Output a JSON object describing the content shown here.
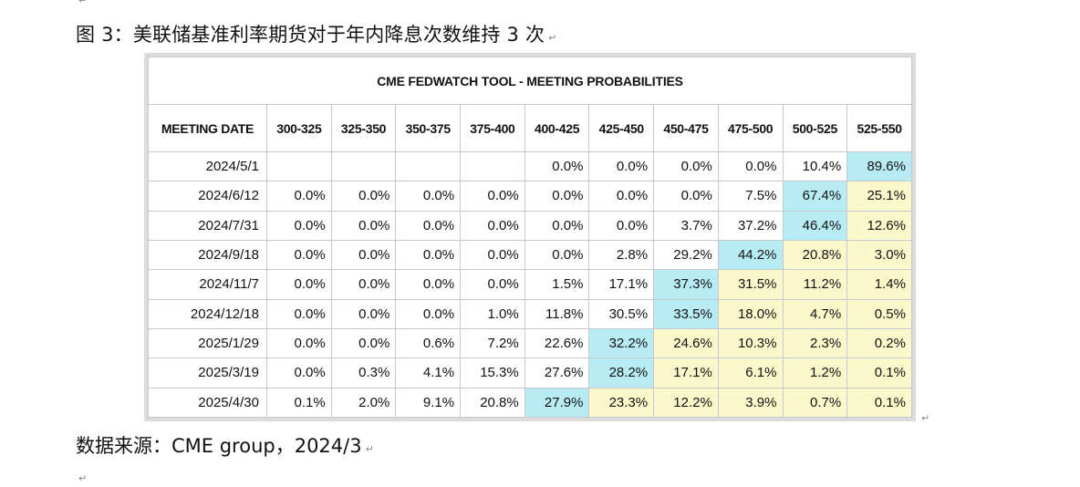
{
  "caption": "图 3：美联储基准利率期货对于年内降息次数维持 3 次",
  "source": "数据来源：CME group，2024/3",
  "paragraph_mark": "↵",
  "colors": {
    "highlight_max": "#b8ecf4",
    "highlight_after": "#fbf8cc",
    "grid": "#c7c7cf"
  },
  "table": {
    "title": "CME FEDWATCH TOOL - MEETING PROBABILITIES",
    "headers": [
      "MEETING DATE",
      "300-325",
      "325-350",
      "350-375",
      "375-400",
      "400-425",
      "425-450",
      "450-475",
      "475-500",
      "500-525",
      "525-550"
    ],
    "rows": [
      {
        "date": "2024/5/1",
        "cells": [
          "",
          "",
          "",
          "",
          "0.0%",
          "0.0%",
          "0.0%",
          "0.0%",
          "10.4%",
          "89.6%"
        ],
        "max_index": 9
      },
      {
        "date": "2024/6/12",
        "cells": [
          "0.0%",
          "0.0%",
          "0.0%",
          "0.0%",
          "0.0%",
          "0.0%",
          "0.0%",
          "7.5%",
          "67.4%",
          "25.1%"
        ],
        "max_index": 8
      },
      {
        "date": "2024/7/31",
        "cells": [
          "0.0%",
          "0.0%",
          "0.0%",
          "0.0%",
          "0.0%",
          "0.0%",
          "3.7%",
          "37.2%",
          "46.4%",
          "12.6%"
        ],
        "max_index": 8
      },
      {
        "date": "2024/9/18",
        "cells": [
          "0.0%",
          "0.0%",
          "0.0%",
          "0.0%",
          "0.0%",
          "2.8%",
          "29.2%",
          "44.2%",
          "20.8%",
          "3.0%"
        ],
        "max_index": 7
      },
      {
        "date": "2024/11/7",
        "cells": [
          "0.0%",
          "0.0%",
          "0.0%",
          "0.0%",
          "1.5%",
          "17.1%",
          "37.3%",
          "31.5%",
          "11.2%",
          "1.4%"
        ],
        "max_index": 6
      },
      {
        "date": "2024/12/18",
        "cells": [
          "0.0%",
          "0.0%",
          "0.0%",
          "1.0%",
          "11.8%",
          "30.5%",
          "33.5%",
          "18.0%",
          "4.7%",
          "0.5%"
        ],
        "max_index": 6
      },
      {
        "date": "2025/1/29",
        "cells": [
          "0.0%",
          "0.0%",
          "0.6%",
          "7.2%",
          "22.6%",
          "32.2%",
          "24.6%",
          "10.3%",
          "2.3%",
          "0.2%"
        ],
        "max_index": 5
      },
      {
        "date": "2025/3/19",
        "cells": [
          "0.0%",
          "0.3%",
          "4.1%",
          "15.3%",
          "27.6%",
          "28.2%",
          "17.1%",
          "6.1%",
          "1.2%",
          "0.1%"
        ],
        "max_index": 5
      },
      {
        "date": "2025/4/30",
        "cells": [
          "0.1%",
          "2.0%",
          "9.1%",
          "20.8%",
          "27.9%",
          "23.3%",
          "12.2%",
          "3.9%",
          "0.7%",
          "0.1%"
        ],
        "max_index": 4
      }
    ]
  }
}
